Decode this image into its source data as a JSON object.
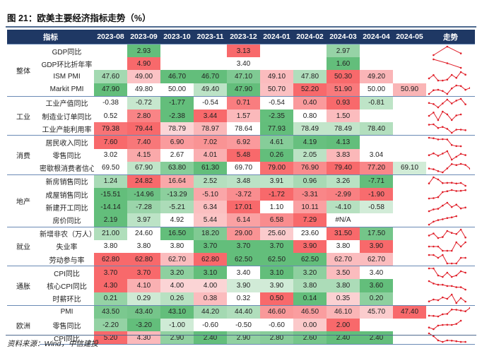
{
  "title": "图 21：欧美主要经济指标走势（%）",
  "source": "资料来源：Wind，中信建投",
  "header": {
    "indicator": "指标",
    "months": [
      "2023-08",
      "2023-09",
      "2023-10",
      "2023-11",
      "2023-12",
      "2024-01",
      "2024-02",
      "2024-03",
      "2024-04",
      "2024-05"
    ],
    "trend": "走势"
  },
  "colors": {
    "header_bg": "#1f3864",
    "high_strong": "#f8696b",
    "high_light": "#fce6e7",
    "low_light": "#e3f3e6",
    "low_strong": "#63be7b"
  },
  "groups": [
    {
      "name": "整体",
      "rows": [
        {
          "label": "GDP同比",
          "values": [
            "",
            "2.93",
            "",
            "",
            "3.13",
            "",
            "",
            "2.97",
            "",
            ""
          ]
        },
        {
          "label": "GDP环比折年率",
          "values": [
            "",
            "4.90",
            "",
            "",
            "3.40",
            "",
            "",
            "1.60",
            "",
            ""
          ]
        },
        {
          "label": "ISM PMI",
          "values": [
            "47.60",
            "49.00",
            "46.70",
            "46.70",
            "47.10",
            "49.10",
            "47.80",
            "50.30",
            "49.20",
            ""
          ]
        },
        {
          "label": "Markit PMI",
          "values": [
            "47.90",
            "49.80",
            "50.00",
            "49.40",
            "47.90",
            "50.70",
            "52.20",
            "51.90",
            "50.00",
            "50.90"
          ]
        }
      ]
    },
    {
      "name": "工业",
      "rows": [
        {
          "label": "工业产值同比",
          "values": [
            "-0.38",
            "-0.72",
            "-1.77",
            "-0.54",
            "0.71",
            "-0.54",
            "0.40",
            "0.93",
            "-0.81",
            ""
          ]
        },
        {
          "label": "制造业订单同比",
          "values": [
            "0.52",
            "2.80",
            "-2.38",
            "3.44",
            "1.57",
            "-2.35",
            "0.80",
            "1.50",
            "",
            ""
          ]
        },
        {
          "label": "工业产能利用率",
          "values": [
            "79.38",
            "79.44",
            "78.79",
            "78.97",
            "78.64",
            "77.93",
            "78.49",
            "78.49",
            "78.40",
            ""
          ]
        }
      ]
    },
    {
      "name": "消费",
      "rows": [
        {
          "label": "居民收入同比",
          "values": [
            "7.60",
            "7.40",
            "6.90",
            "7.02",
            "6.92",
            "4.61",
            "4.19",
            "4.13",
            "",
            ""
          ]
        },
        {
          "label": "零售同比",
          "values": [
            "3.02",
            "4.15",
            "2.67",
            "4.01",
            "5.48",
            "0.26",
            "2.05",
            "3.83",
            "3.04",
            ""
          ]
        },
        {
          "label": "密歇根消费者信心",
          "values": [
            "69.50",
            "67.90",
            "63.80",
            "61.30",
            "69.70",
            "79.00",
            "76.90",
            "79.40",
            "77.20",
            "69.10"
          ]
        }
      ]
    },
    {
      "name": "地产",
      "rows": [
        {
          "label": "新房销售同比",
          "values": [
            "1.24",
            "24.82",
            "16.64",
            "2.52",
            "3.48",
            "3.91",
            "0.96",
            "3.26",
            "-7.71",
            ""
          ]
        },
        {
          "label": "成屋销售同比",
          "values": [
            "-15.51",
            "-14.96",
            "-13.29",
            "-5.10",
            "-3.72",
            "-1.72",
            "-3.31",
            "-2.99",
            "-1.90",
            ""
          ]
        },
        {
          "label": "新建开工同比",
          "values": [
            "-14.14",
            "-7.28",
            "-5.21",
            "6.34",
            "17.01",
            "1.10",
            "10.11",
            "-4.10",
            "-0.58",
            ""
          ]
        },
        {
          "label": "房价同比",
          "values": [
            "2.19",
            "3.97",
            "4.92",
            "5.44",
            "6.14",
            "6.58",
            "7.29",
            "#N/A",
            "",
            ""
          ]
        }
      ]
    },
    {
      "name": "就业",
      "rows": [
        {
          "label": "新增非农（万人）",
          "values": [
            "21.00",
            "24.60",
            "16.50",
            "18.20",
            "29.00",
            "25.60",
            "23.60",
            "31.50",
            "17.50",
            ""
          ]
        },
        {
          "label": "失业率",
          "values": [
            "3.80",
            "3.80",
            "3.80",
            "3.70",
            "3.70",
            "3.70",
            "3.90",
            "3.80",
            "3.90",
            ""
          ]
        },
        {
          "label": "劳动参与率",
          "values": [
            "62.80",
            "62.80",
            "62.70",
            "62.80",
            "62.50",
            "62.50",
            "62.50",
            "62.70",
            "62.70",
            ""
          ]
        }
      ]
    },
    {
      "name": "通胀",
      "rows": [
        {
          "label": "CPI同比",
          "values": [
            "3.70",
            "3.70",
            "3.20",
            "3.10",
            "3.40",
            "3.10",
            "3.20",
            "3.50",
            "3.40",
            ""
          ]
        },
        {
          "label": "核心CPI同比",
          "values": [
            "4.30",
            "4.10",
            "4.00",
            "4.00",
            "3.90",
            "3.90",
            "3.80",
            "3.80",
            "3.60",
            ""
          ]
        },
        {
          "label": "时薪环比",
          "values": [
            "0.21",
            "0.29",
            "0.26",
            "0.38",
            "0.32",
            "0.50",
            "0.14",
            "0.35",
            "0.20",
            ""
          ]
        }
      ]
    },
    {
      "name": "欧洲",
      "rows": [
        {
          "label": "PMI",
          "values": [
            "43.50",
            "43.40",
            "43.10",
            "44.20",
            "44.40",
            "46.60",
            "46.50",
            "46.10",
            "45.70",
            "47.40"
          ]
        },
        {
          "label": "零售同比",
          "values": [
            "-2.20",
            "-3.20",
            "-1.00",
            "-0.60",
            "-0.50",
            "-0.60",
            "0.00",
            "2.00",
            "",
            ""
          ]
        },
        {
          "label": "CPI同比",
          "values": [
            "5.20",
            "4.30",
            "2.90",
            "2.40",
            "2.90",
            "2.80",
            "2.60",
            "2.40",
            "2.40",
            ""
          ]
        }
      ]
    }
  ]
}
